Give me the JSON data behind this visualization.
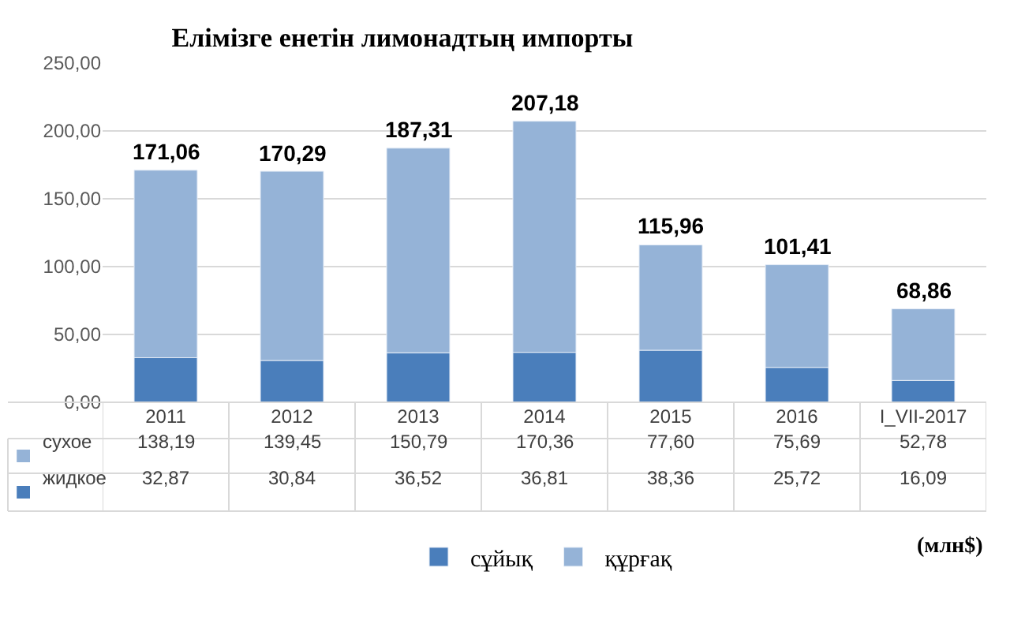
{
  "chart_data": {
    "type": "bar",
    "stacked": true,
    "title": "Елімізге енетін лимонадтың импорты",
    "categories": [
      "2011",
      "2012",
      "2013",
      "2014",
      "2015",
      "2016",
      "I_VII-2017"
    ],
    "series": [
      {
        "name": "сұйық",
        "color": "#4a7ebb",
        "values": [
          32.87,
          30.84,
          36.52,
          36.81,
          38.36,
          25.72,
          16.09
        ],
        "value_labels": [
          "32,87",
          "30,84",
          "36,52",
          "36,81",
          "38,36",
          "25,72",
          "16,09"
        ]
      },
      {
        "name": "құрғақ",
        "color": "#95b3d7",
        "values": [
          138.19,
          139.45,
          150.79,
          170.36,
          77.6,
          75.69,
          52.78
        ],
        "value_labels": [
          "138,19",
          "139,45",
          "150,79",
          "170,36",
          "77,60",
          "75,69",
          "52,78"
        ]
      }
    ],
    "totals": [
      "171,06",
      "170,29",
      "187,31",
      "207,18",
      "115,96",
      "101,41",
      "68,86"
    ],
    "annotations": [
      "жидкое",
      "сухое",
      "(млн$)"
    ],
    "ylim": [
      0,
      250
    ],
    "yticks": [
      {
        "value": 0,
        "label": "0,00"
      },
      {
        "value": 50,
        "label": "50,00"
      },
      {
        "value": 100,
        "label": "100,00"
      },
      {
        "value": 150,
        "label": "150,00"
      },
      {
        "value": 200,
        "label": "200,00"
      },
      {
        "value": 250,
        "label": "250,00"
      }
    ],
    "grid": "y",
    "legend": "bottom"
  }
}
